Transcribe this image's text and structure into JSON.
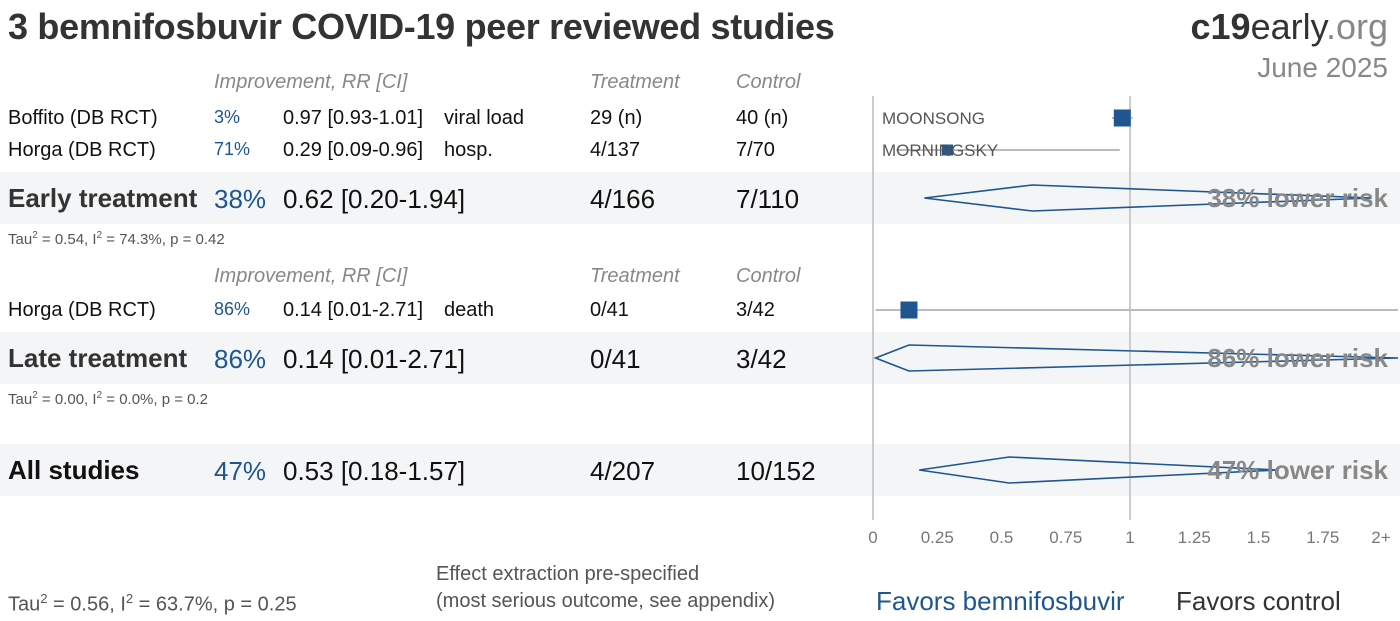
{
  "title": "3 bemnifosbuvir COVID-19 peer reviewed studies",
  "brand": {
    "bold": "c19",
    "mid": "early",
    "org": ".org"
  },
  "date": "June 2025",
  "headers": {
    "improvement": "Improvement, RR [CI]",
    "treatment": "Treatment",
    "control": "Control"
  },
  "early": {
    "studies": [
      {
        "name": "Boffito (DB RCT)",
        "improvement": "3%",
        "rr_text": "0.97 [0.93-1.01]",
        "outcome": "viral load",
        "treatment": "29 (n)",
        "control": "40 (n)",
        "label": "MOONSONG"
      },
      {
        "name": "Horga (DB RCT)",
        "improvement": "71%",
        "rr_text": "0.29 [0.09-0.96]",
        "outcome": "hosp.",
        "treatment": "4/137",
        "control": "7/70",
        "label": "MORNINGSKY"
      }
    ],
    "summary": {
      "name": "Early treatment",
      "improvement": "38%",
      "rr_text": "0.62 [0.20-1.94]",
      "treatment": "4/166",
      "control": "7/110",
      "risk_label": "38% lower risk"
    },
    "stats": {
      "tau": "Tau",
      "rest": " = 0.54, I",
      "rest2": " = 74.3%, p = 0.42"
    }
  },
  "late": {
    "studies": [
      {
        "name": "Horga (DB RCT)",
        "improvement": "86%",
        "rr_text": "0.14 [0.01-2.71]",
        "outcome": "death",
        "treatment": "0/41",
        "control": "3/42"
      }
    ],
    "summary": {
      "name": "Late treatment",
      "improvement": "86%",
      "rr_text": "0.14 [0.01-2.71]",
      "treatment": "0/41",
      "control": "3/42",
      "risk_label": "86% lower risk"
    },
    "stats": {
      "tau": "Tau",
      "rest": " = 0.00, I",
      "rest2": " = 0.0%, p = 0.2"
    }
  },
  "all": {
    "summary": {
      "name": "All studies",
      "improvement": "47%",
      "rr_text": "0.53 [0.18-1.57]",
      "treatment": "4/207",
      "control": "10/152",
      "risk_label": "47% lower risk"
    },
    "stats": {
      "tau": "Tau",
      "rest": " = 0.56, I",
      "rest2": " = 63.7%, p = 0.25"
    }
  },
  "footnote": {
    "line1": "Effect extraction pre-specified",
    "line2": "(most serious outcome, see appendix)"
  },
  "favors": {
    "left": "Favors bemnifosbuvir",
    "right": "Favors control"
  },
  "colors": {
    "accent": "#1f5590",
    "band": "#f3f5f7",
    "axis": "#cccccc"
  },
  "chart_data": {
    "type": "forest",
    "x_range": [
      0,
      2
    ],
    "ticks": [
      {
        "v": 0,
        "label": "0"
      },
      {
        "v": 0.25,
        "label": "0.25"
      },
      {
        "v": 0.5,
        "label": "0.5"
      },
      {
        "v": 0.75,
        "label": "0.75"
      },
      {
        "v": 1,
        "label": "1"
      },
      {
        "v": 1.25,
        "label": "1.25"
      },
      {
        "v": 1.5,
        "label": "1.5"
      },
      {
        "v": 1.75,
        "label": "1.75"
      },
      {
        "v": 2,
        "label": "2+"
      }
    ],
    "rows": [
      {
        "kind": "study",
        "rr": 0.97,
        "lo": 0.93,
        "hi": 1.01
      },
      {
        "kind": "study",
        "rr": 0.29,
        "lo": 0.09,
        "hi": 0.96
      },
      {
        "kind": "summary",
        "rr": 0.62,
        "lo": 0.2,
        "hi": 1.94
      },
      {
        "kind": "study",
        "rr": 0.14,
        "lo": 0.01,
        "hi": 2.71
      },
      {
        "kind": "summary",
        "rr": 0.14,
        "lo": 0.01,
        "hi": 2.71
      },
      {
        "kind": "summary",
        "rr": 0.53,
        "lo": 0.18,
        "hi": 1.57
      }
    ]
  }
}
